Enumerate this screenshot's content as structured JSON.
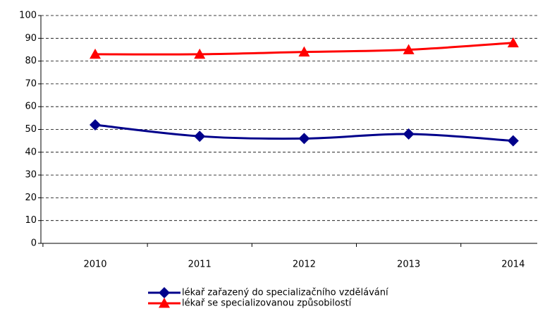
{
  "chart_data": {
    "type": "line",
    "categories": [
      "2010",
      "2011",
      "2012",
      "2013",
      "2014"
    ],
    "series": [
      {
        "name": "lékař zařazený do specializačního vzdělávání",
        "color": "#00008b",
        "marker": "diamond",
        "values": [
          52,
          47,
          46,
          48,
          45
        ]
      },
      {
        "name": "lékař se specializovanou způsobilostí",
        "color": "#ff0000",
        "marker": "triangle",
        "values": [
          83,
          83,
          84,
          85,
          88
        ]
      }
    ],
    "ylim": [
      0,
      100
    ],
    "yticks": [
      0,
      10,
      20,
      30,
      40,
      50,
      60,
      70,
      80,
      90,
      100
    ],
    "grid": true,
    "smooth": true,
    "legend": "bottom"
  }
}
